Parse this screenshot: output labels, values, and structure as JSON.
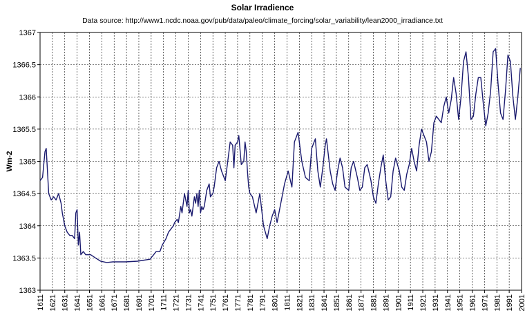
{
  "chart_data": {
    "type": "line",
    "title": "Solar Irradience",
    "subtitle": "Data source: http://www1.ncdc.noaa.gov/pub/data/paleo/climate_forcing/solar_variability/lean2000_irradiance.txt",
    "xlabel": "",
    "ylabel": "Wm-2",
    "xlim": [
      1611,
      2001
    ],
    "ylim": [
      1363,
      1367
    ],
    "x_ticks": [
      1611,
      1621,
      1631,
      1641,
      1651,
      1661,
      1671,
      1681,
      1691,
      1701,
      1711,
      1721,
      1731,
      1741,
      1751,
      1761,
      1771,
      1781,
      1791,
      1801,
      1811,
      1821,
      1831,
      1841,
      1851,
      1861,
      1871,
      1881,
      1891,
      1901,
      1911,
      1921,
      1931,
      1941,
      1951,
      1961,
      1971,
      1981,
      1991,
      2001
    ],
    "y_ticks": [
      1363,
      1363.5,
      1364,
      1364.5,
      1365,
      1365.5,
      1366,
      1366.5,
      1367
    ],
    "y_tick_labels": [
      "1363",
      "1363.5",
      "1364",
      "1364.5",
      "1365",
      "1365.5",
      "1366",
      "1366.5",
      "1367"
    ],
    "grid": true,
    "line_color": "#1a1a6e",
    "series": [
      {
        "x": [
          1611,
          1613,
          1615,
          1616,
          1618,
          1620,
          1622,
          1624,
          1626,
          1628,
          1629,
          1631,
          1633,
          1635,
          1637,
          1639,
          1640,
          1641,
          1642,
          1643,
          1644,
          1646,
          1648,
          1652,
          1656,
          1660,
          1665,
          1670,
          1680,
          1690,
          1700,
          1703,
          1705,
          1708,
          1710,
          1713,
          1715,
          1717,
          1719,
          1720,
          1722,
          1723,
          1725,
          1726,
          1728,
          1730,
          1731,
          1732,
          1733,
          1734,
          1735,
          1736,
          1737,
          1738,
          1739,
          1740,
          1741,
          1742,
          1743,
          1744,
          1746,
          1748,
          1749,
          1751,
          1752,
          1754,
          1756,
          1758,
          1761,
          1763,
          1765,
          1767,
          1768,
          1769,
          1771,
          1772,
          1774,
          1776,
          1777,
          1778,
          1779,
          1780,
          1781,
          1783,
          1786,
          1789,
          1792,
          1795,
          1797,
          1799,
          1801,
          1803,
          1806,
          1809,
          1812,
          1815,
          1817,
          1820,
          1823,
          1826,
          1829,
          1831,
          1834,
          1836,
          1838,
          1840,
          1842,
          1843,
          1846,
          1848,
          1850,
          1852,
          1854,
          1856,
          1858,
          1861,
          1863,
          1865,
          1868,
          1870,
          1872,
          1874,
          1876,
          1879,
          1881,
          1883,
          1885,
          1887,
          1889,
          1891,
          1893,
          1895,
          1897,
          1899,
          1902,
          1904,
          1906,
          1908,
          1910,
          1912,
          1914,
          1916,
          1918,
          1920,
          1922,
          1924,
          1926,
          1928,
          1930,
          1932,
          1934,
          1936,
          1938,
          1940,
          1942,
          1944,
          1946,
          1948,
          1950,
          1952,
          1954,
          1956,
          1958,
          1960,
          1962,
          1964,
          1966,
          1968,
          1970,
          1972,
          1974,
          1976,
          1978,
          1980,
          1982,
          1984,
          1986,
          1988,
          1990,
          1992,
          1994,
          1996,
          1998,
          2000
        ],
        "y": [
          1364.7,
          1364.75,
          1365.15,
          1365.2,
          1364.5,
          1364.4,
          1364.45,
          1364.4,
          1364.5,
          1364.35,
          1364.2,
          1364.0,
          1363.9,
          1363.85,
          1363.85,
          1363.8,
          1364.2,
          1364.25,
          1363.7,
          1363.9,
          1363.55,
          1363.6,
          1363.55,
          1363.55,
          1363.5,
          1363.45,
          1363.43,
          1363.44,
          1363.44,
          1363.45,
          1363.48,
          1363.55,
          1363.6,
          1363.6,
          1363.7,
          1363.8,
          1363.9,
          1363.95,
          1364.0,
          1364.05,
          1364.1,
          1364.05,
          1364.3,
          1364.2,
          1364.5,
          1364.3,
          1364.55,
          1364.2,
          1364.25,
          1364.15,
          1364.3,
          1364.45,
          1364.35,
          1364.5,
          1364.3,
          1364.55,
          1364.2,
          1364.3,
          1364.25,
          1364.3,
          1364.55,
          1364.65,
          1364.45,
          1364.5,
          1364.6,
          1364.9,
          1365.0,
          1364.85,
          1364.7,
          1365.0,
          1365.3,
          1365.25,
          1364.9,
          1365.25,
          1365.3,
          1365.4,
          1364.95,
          1365.0,
          1365.3,
          1365.15,
          1364.85,
          1364.6,
          1364.5,
          1364.45,
          1364.2,
          1364.5,
          1364.0,
          1363.8,
          1364.0,
          1364.15,
          1364.25,
          1364.05,
          1364.35,
          1364.65,
          1364.85,
          1364.6,
          1365.3,
          1365.45,
          1365.0,
          1364.75,
          1364.7,
          1365.2,
          1365.35,
          1364.85,
          1364.6,
          1364.9,
          1365.25,
          1365.35,
          1364.85,
          1364.65,
          1364.55,
          1364.85,
          1365.05,
          1364.9,
          1364.6,
          1364.55,
          1364.9,
          1365.0,
          1364.75,
          1364.55,
          1364.6,
          1364.9,
          1364.95,
          1364.7,
          1364.45,
          1364.35,
          1364.65,
          1364.9,
          1365.1,
          1364.7,
          1364.4,
          1364.45,
          1364.85,
          1365.05,
          1364.85,
          1364.6,
          1364.55,
          1364.8,
          1364.95,
          1365.2,
          1365.0,
          1364.85,
          1365.25,
          1365.5,
          1365.4,
          1365.3,
          1365.0,
          1365.15,
          1365.6,
          1365.7,
          1365.65,
          1365.6,
          1365.85,
          1366.0,
          1365.75,
          1365.95,
          1366.3,
          1366.05,
          1365.65,
          1366.0,
          1366.55,
          1366.7,
          1366.3,
          1365.65,
          1365.7,
          1366.05,
          1366.3,
          1366.3,
          1365.9,
          1365.55,
          1365.75,
          1366.1,
          1366.7,
          1366.75,
          1366.2,
          1365.75,
          1365.65,
          1366.1,
          1366.65,
          1366.55,
          1366.0,
          1365.65,
          1366.0,
          1366.45
        ]
      }
    ]
  }
}
